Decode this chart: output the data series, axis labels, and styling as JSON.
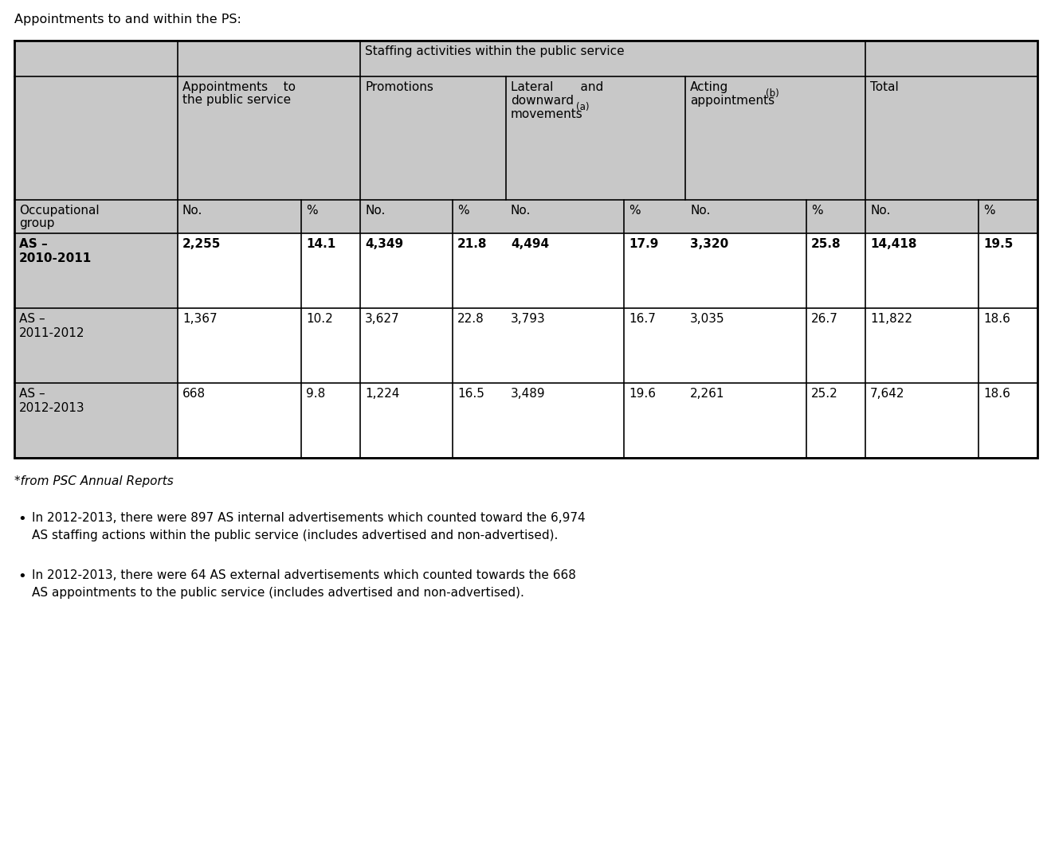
{
  "title": "Appointments to and within the PS:",
  "footnote": "*from PSC Annual Reports",
  "bullet1_line1": "In 2012-2013, there were 897 AS internal advertisements which counted toward the 6,974",
  "bullet1_line2": "AS staffing actions within the public service (includes advertised and non-advertised).",
  "bullet2_line1": "In 2012-2013, there were 64 AS external advertisements which counted towards the 668",
  "bullet2_line2": "AS appointments to the public service (includes advertised and non-advertised).",
  "rows": [
    {
      "label_line1": "AS –",
      "label_line2": "2010-2011",
      "bold": true,
      "data": [
        "2,255",
        "14.1",
        "4,349",
        "21.8",
        "4,494",
        "17.9",
        "3,320",
        "25.8",
        "14,418",
        "19.5"
      ]
    },
    {
      "label_line1": "AS –",
      "label_line2": "2011-2012",
      "bold": false,
      "data": [
        "1,367",
        "10.2",
        "3,627",
        "22.8",
        "3,793",
        "16.7",
        "3,035",
        "26.7",
        "11,822",
        "18.6"
      ]
    },
    {
      "label_line1": "AS –",
      "label_line2": "2012-2013",
      "bold": false,
      "data": [
        "668",
        "9.8",
        "1,224",
        "16.5",
        "3,489",
        "19.6",
        "2,261",
        "25.2",
        "7,642",
        "18.6"
      ]
    }
  ],
  "dot_bg": "#c8c8c8",
  "white_bg": "#ffffff",
  "page_bg": "#ffffff",
  "border_color": "#000000",
  "text_color": "#000000",
  "font_size": 11.0,
  "font_size_title": 11.5,
  "font_size_footnote": 11.0,
  "font_size_bullet": 11.0
}
